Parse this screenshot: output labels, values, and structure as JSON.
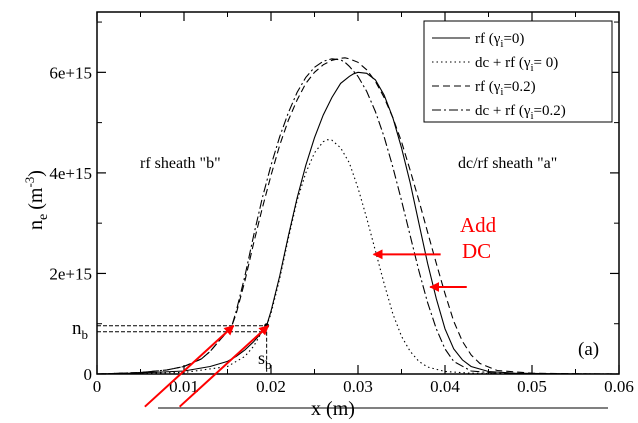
{
  "chart_data": {
    "type": "line",
    "xlabel": "x (m)",
    "ylabel_base": "n",
    "ylabel_sub": "e",
    "ylabel_unit": "(m",
    "ylabel_unit_sup": "-3",
    "ylabel_unit_close": ")",
    "xlim": [
      0,
      0.06
    ],
    "ylim": [
      0,
      7200000000000000.0
    ],
    "x_ticks": [
      0,
      0.01,
      0.02,
      0.03,
      0.04,
      0.05,
      0.06
    ],
    "x_tick_labels": [
      "0",
      "0.01",
      "0.02",
      "0.03",
      "0.04",
      "0.05",
      "0.06"
    ],
    "y_ticks": [
      0,
      2000000000000000.0,
      4000000000000000.0,
      6000000000000000.0
    ],
    "y_tick_labels": [
      "0",
      "2e+15",
      "4e+15",
      "6e+15"
    ],
    "grid": false,
    "legend_position": "top-right",
    "series": [
      {
        "name": "rf (γ",
        "name_sub": "i",
        "name_tail": "=0)",
        "style": "solid",
        "x": [
          0,
          0.005,
          0.01,
          0.013,
          0.015,
          0.016,
          0.017,
          0.018,
          0.019,
          0.0195,
          0.02,
          0.021,
          0.022,
          0.023,
          0.024,
          0.025,
          0.026,
          0.027,
          0.028,
          0.029,
          0.0295,
          0.03,
          0.031,
          0.032,
          0.033,
          0.034,
          0.035,
          0.036,
          0.037,
          0.038,
          0.039,
          0.04,
          0.041,
          0.042,
          0.043,
          0.045,
          0.048,
          0.052,
          0.056,
          0.06
        ],
        "y": [
          0,
          20000000000000.0,
          60000000000000.0,
          150000000000000.0,
          250000000000000.0,
          350000000000000.0,
          480000000000000.0,
          640000000000000.0,
          840000000000000.0,
          960000000000000.0,
          1250000000000000.0,
          1950000000000000.0,
          2750000000000000.0,
          3500000000000000.0,
          4150000000000000.0,
          4700000000000000.0,
          5150000000000000.0,
          5500000000000000.0,
          5780000000000000.0,
          5920000000000000.0,
          5970000000000000.0,
          6000000000000000.0,
          5980000000000000.0,
          5850000000000000.0,
          5550000000000000.0,
          5100000000000000.0,
          4500000000000000.0,
          3800000000000000.0,
          3000000000000000.0,
          2200000000000000.0,
          1500000000000000.0,
          900000000000000.0,
          500000000000000.0,
          280000000000000.0,
          150000000000000.0,
          50000000000000.0,
          15000000000000.0,
          5000000000000.0,
          1000000000000.0,
          0
        ]
      },
      {
        "name": "dc + rf (γ",
        "name_sub": "i",
        "name_tail": "= 0)",
        "style": "dotted",
        "x": [
          0,
          0.01,
          0.015,
          0.017,
          0.018,
          0.019,
          0.0195,
          0.02,
          0.021,
          0.022,
          0.023,
          0.024,
          0.025,
          0.026,
          0.0265,
          0.027,
          0.028,
          0.029,
          0.03,
          0.031,
          0.032,
          0.033,
          0.034,
          0.035,
          0.036,
          0.037,
          0.038,
          0.04,
          0.043,
          0.047,
          0.052,
          0.06
        ],
        "y": [
          0,
          30000000000000.0,
          150000000000000.0,
          350000000000000.0,
          550000000000000.0,
          850000000000000.0,
          960000000000000.0,
          1200000000000000.0,
          1900000000000000.0,
          2700000000000000.0,
          3450000000000000.0,
          4000000000000000.0,
          4400000000000000.0,
          4620000000000000.0,
          4660000000000000.0,
          4650000000000000.0,
          4500000000000000.0,
          4200000000000000.0,
          3700000000000000.0,
          3100000000000000.0,
          2450000000000000.0,
          1800000000000000.0,
          1200000000000000.0,
          750000000000000.0,
          450000000000000.0,
          250000000000000.0,
          140000000000000.0,
          50000000000000.0,
          15000000000000.0,
          5000000000000.0,
          1000000000000.0,
          0
        ]
      },
      {
        "name": "rf (γ",
        "name_sub": "i",
        "name_tail": "=0.2)",
        "style": "dashed",
        "x": [
          0,
          0.005,
          0.008,
          0.01,
          0.012,
          0.013,
          0.014,
          0.015,
          0.0155,
          0.016,
          0.017,
          0.018,
          0.019,
          0.02,
          0.021,
          0.022,
          0.023,
          0.024,
          0.025,
          0.026,
          0.027,
          0.028,
          0.0285,
          0.029,
          0.03,
          0.031,
          0.032,
          0.033,
          0.034,
          0.035,
          0.036,
          0.037,
          0.038,
          0.039,
          0.04,
          0.041,
          0.042,
          0.043,
          0.044,
          0.046,
          0.05,
          0.055,
          0.06
        ],
        "y": [
          0,
          30000000000000.0,
          80000000000000.0,
          150000000000000.0,
          300000000000000.0,
          450000000000000.0,
          650000000000000.0,
          850000000000000.0,
          960000000000000.0,
          1200000000000000.0,
          1850000000000000.0,
          2600000000000000.0,
          3300000000000000.0,
          3950000000000000.0,
          4550000000000000.0,
          5050000000000000.0,
          5450000000000000.0,
          5780000000000000.0,
          6000000000000000.0,
          6150000000000000.0,
          6240000000000000.0,
          6280000000000000.0,
          6290000000000000.0,
          6270000000000000.0,
          6200000000000000.0,
          6050000000000000.0,
          5820000000000000.0,
          5500000000000000.0,
          5100000000000000.0,
          4620000000000000.0,
          4050000000000000.0,
          3450000000000000.0,
          2820000000000000.0,
          2200000000000000.0,
          1600000000000000.0,
          1050000000000000.0,
          650000000000000.0,
          380000000000000.0,
          210000000000000.0,
          70000000000000.0,
          15000000000000.0,
          3000000000000.0,
          0
        ]
      },
      {
        "name": "dc + rf (γ",
        "name_sub": "i",
        "name_tail": "=0.2)",
        "style": "dashdot",
        "x": [
          0,
          0.005,
          0.008,
          0.01,
          0.012,
          0.013,
          0.014,
          0.015,
          0.0155,
          0.016,
          0.017,
          0.018,
          0.019,
          0.02,
          0.021,
          0.022,
          0.023,
          0.024,
          0.025,
          0.026,
          0.027,
          0.028,
          0.0285,
          0.029,
          0.03,
          0.031,
          0.032,
          0.033,
          0.034,
          0.035,
          0.036,
          0.037,
          0.038,
          0.039,
          0.04,
          0.041,
          0.043,
          0.046,
          0.05,
          0.055,
          0.06
        ],
        "y": [
          0,
          30000000000000.0,
          80000000000000.0,
          150000000000000.0,
          300000000000000.0,
          450000000000000.0,
          650000000000000.0,
          850000000000000.0,
          960000000000000.0,
          1250000000000000.0,
          1950000000000000.0,
          2750000000000000.0,
          3500000000000000.0,
          4150000000000000.0,
          4720000000000000.0,
          5200000000000000.0,
          5600000000000000.0,
          5900000000000000.0,
          6100000000000000.0,
          6220000000000000.0,
          6270000000000000.0,
          6250000000000000.0,
          6200000000000000.0,
          6120000000000000.0,
          5920000000000000.0,
          5620000000000000.0,
          5220000000000000.0,
          4720000000000000.0,
          4120000000000000.0,
          3450000000000000.0,
          2750000000000000.0,
          2050000000000000.0,
          1420000000000000.0,
          900000000000000.0,
          500000000000000.0,
          250000000000000.0,
          60000000000000.0,
          15000000000000.0,
          3000000000000.0,
          1000000000000.0,
          0
        ]
      }
    ],
    "annotations": {
      "sheath_b": "rf sheath \"b\"",
      "sheath_a": "dc/rf sheath \"a\"",
      "add_dc_1": "Add",
      "add_dc_2": "DC",
      "nb_base": "n",
      "nb_sub": "b",
      "sb_base": "s",
      "sb_sub": "b",
      "panel_label": "(a)"
    },
    "n_b_values": [
      960000000000000.0,
      840000000000000.0
    ],
    "s_b_point": {
      "x": 0.0195,
      "y": 960000000000000.0
    },
    "add_dc_arrows": [
      {
        "y": 2380000000000000.0,
        "x_from": 0.0395,
        "x_to": 0.0318
      },
      {
        "y": 1730000000000000.0,
        "x_from": 0.0425,
        "x_to": 0.0383
      }
    ],
    "red_diagonal_arrows": [
      {
        "from": [
          0.0055,
          -650000000000000.0
        ],
        "to": [
          0.0157,
          960000000000000.0
        ]
      },
      {
        "from": [
          0.0095,
          -650000000000000.0
        ],
        "to": [
          0.0197,
          960000000000000.0
        ]
      }
    ],
    "colors": {
      "series": "#000000",
      "arrows": "#ff0000"
    }
  }
}
